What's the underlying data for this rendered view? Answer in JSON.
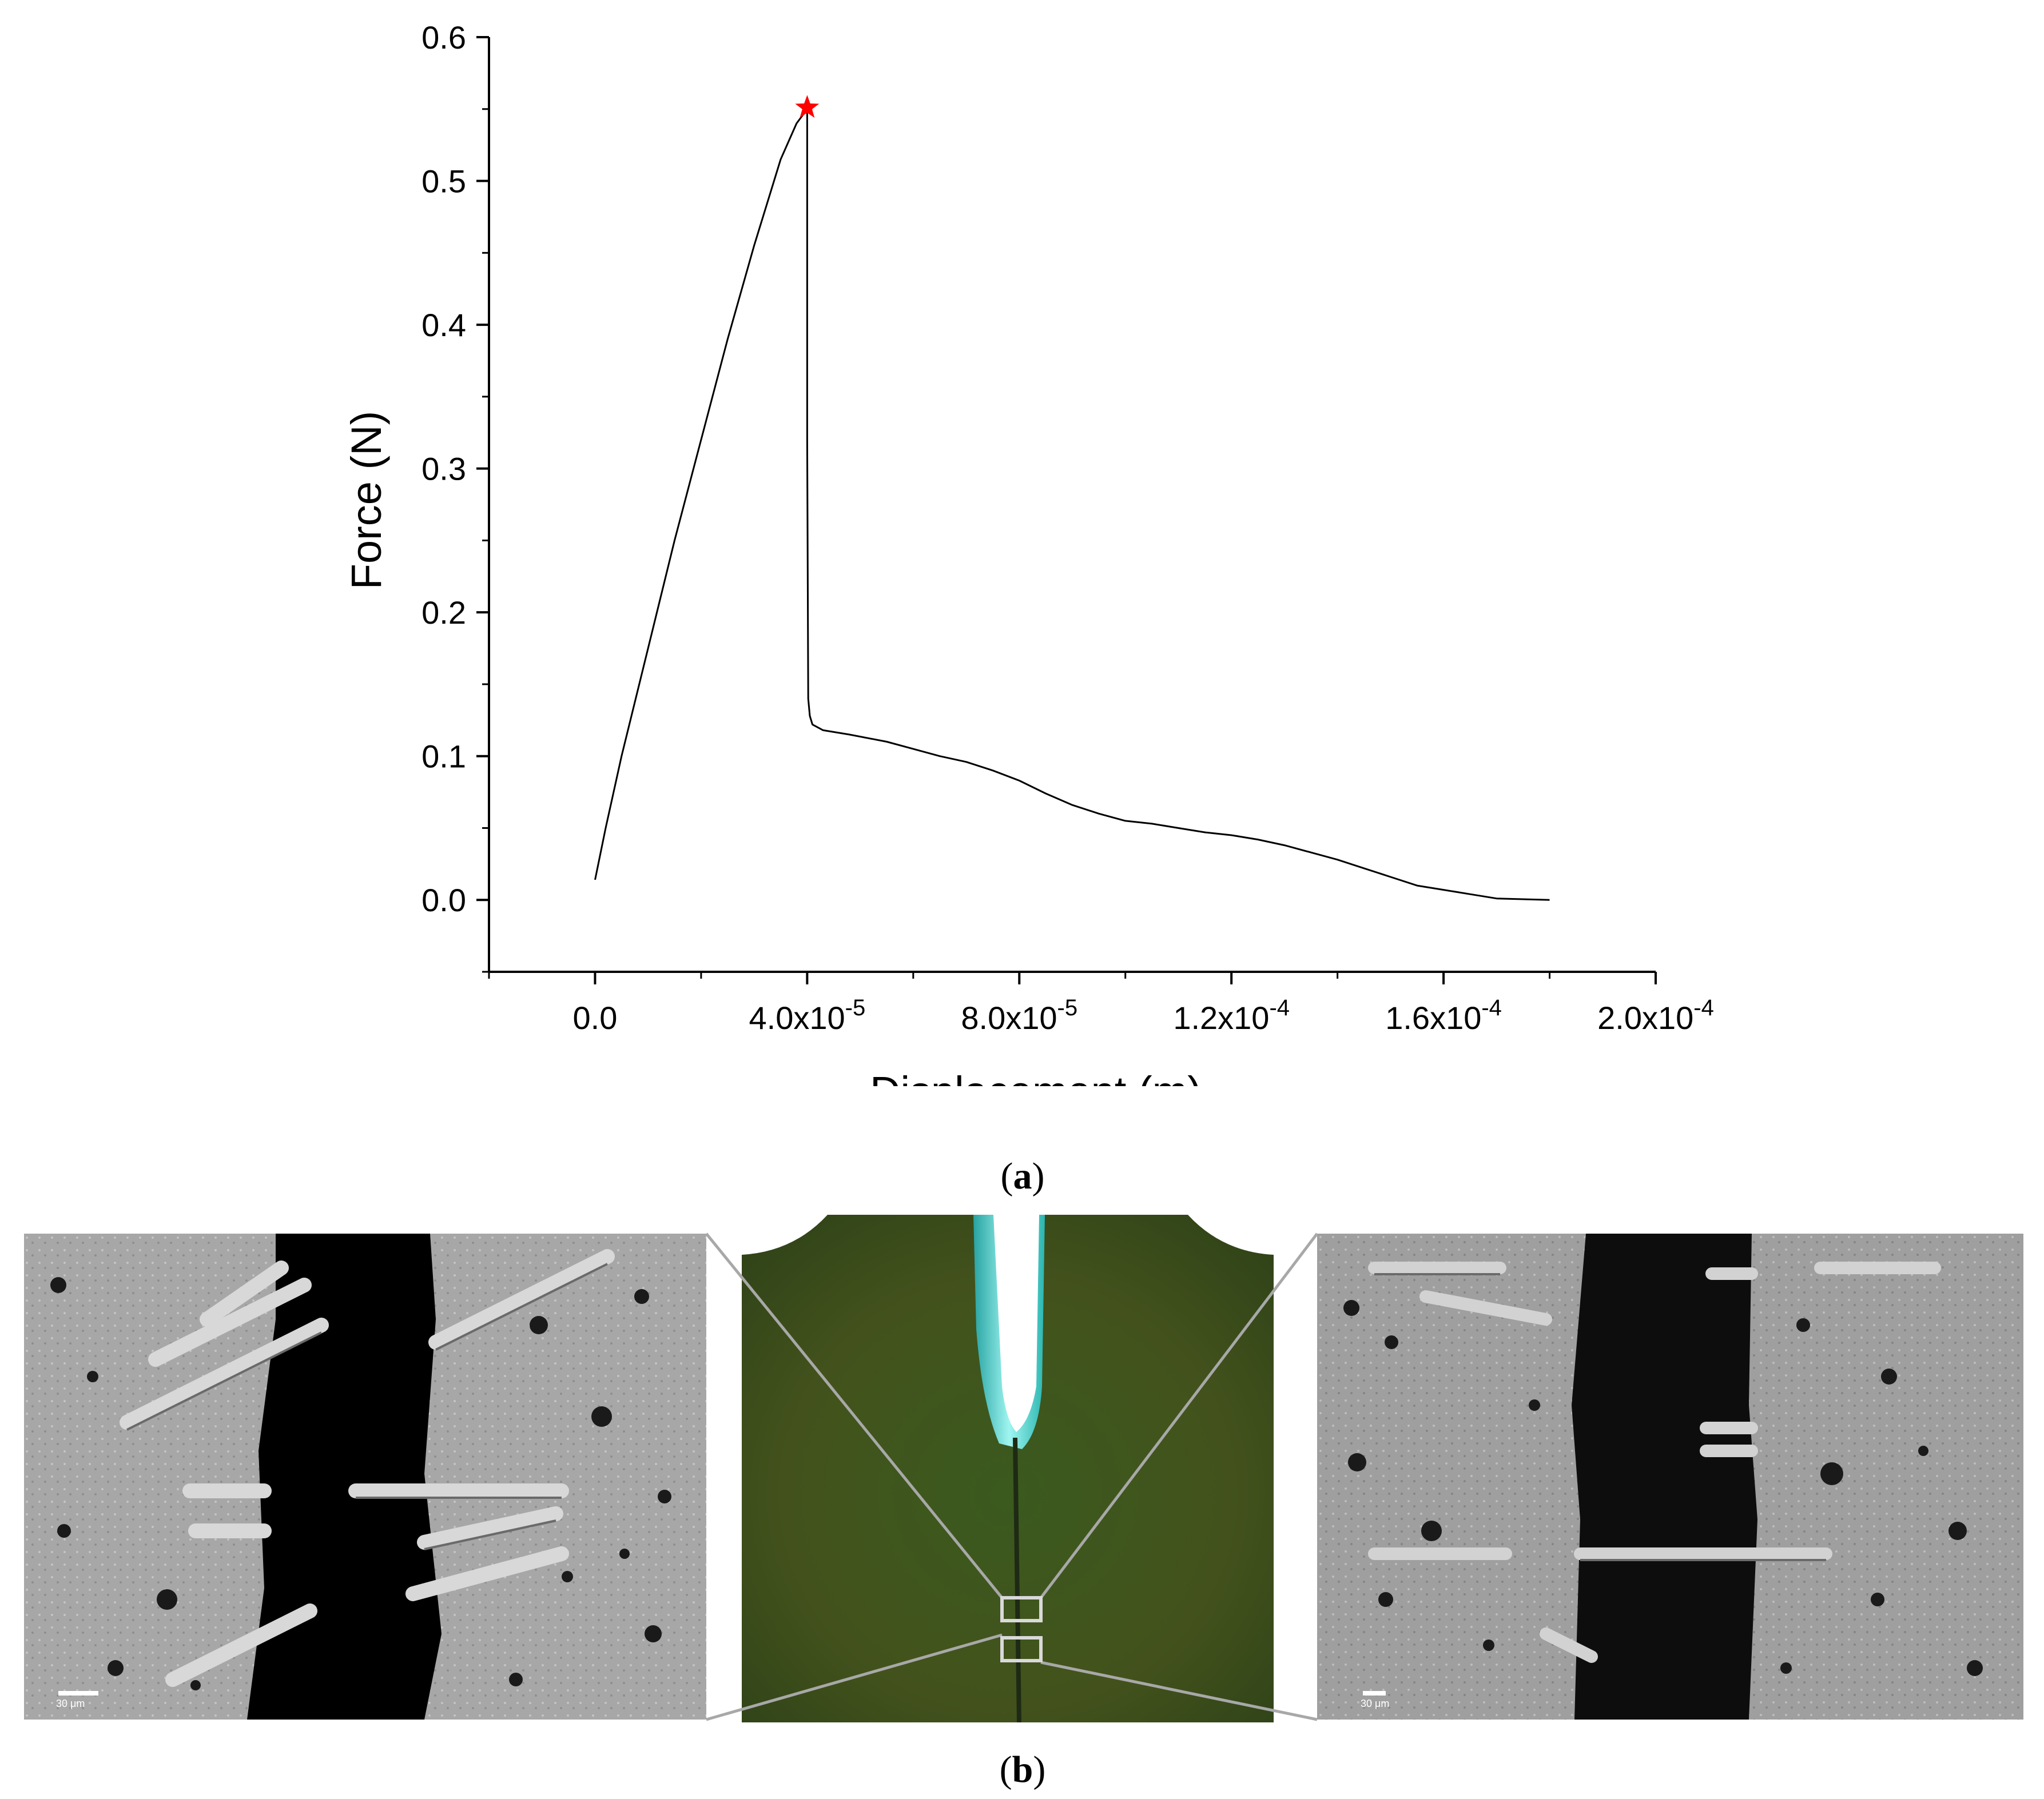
{
  "chart_data": {
    "type": "line",
    "xlabel": "Displacement (m)",
    "ylabel": "Force (N)",
    "xlim": [
      -2e-05,
      0.0002
    ],
    "ylim": [
      -0.05,
      0.6
    ],
    "x_ticks": [
      {
        "value": 0.0,
        "label": "0.0",
        "exp": ""
      },
      {
        "value": 4e-05,
        "label": "4.0x10",
        "exp": "-5"
      },
      {
        "value": 8e-05,
        "label": "8.0x10",
        "exp": "-5"
      },
      {
        "value": 0.00012,
        "label": "1.2x10",
        "exp": "-4"
      },
      {
        "value": 0.00016,
        "label": "1.6x10",
        "exp": "-4"
      },
      {
        "value": 0.0002,
        "label": "2.0x10",
        "exp": "-4"
      }
    ],
    "y_ticks": [
      {
        "value": 0.0,
        "label": "0.0"
      },
      {
        "value": 0.1,
        "label": "0.1"
      },
      {
        "value": 0.2,
        "label": "0.2"
      },
      {
        "value": 0.3,
        "label": "0.3"
      },
      {
        "value": 0.4,
        "label": "0.4"
      },
      {
        "value": 0.5,
        "label": "0.5"
      },
      {
        "value": 0.6,
        "label": "0.6"
      }
    ],
    "grid": false,
    "legend": "none",
    "series": [
      {
        "color": "#000000",
        "x": [
          0.0,
          2e-06,
          5e-06,
          1e-05,
          1.5e-05,
          2e-05,
          2.5e-05,
          3e-05,
          3.5e-05,
          3.8e-05,
          4e-05,
          4e-05,
          4.02e-05,
          4.05e-05,
          4.1e-05,
          4.3e-05,
          4.8e-05,
          5.5e-05,
          6e-05,
          6.5e-05,
          7e-05,
          7.5e-05,
          8e-05,
          8.5e-05,
          9e-05,
          9.5e-05,
          0.0001,
          0.000105,
          0.00011,
          0.000115,
          0.00012,
          0.000125,
          0.00013,
          0.000135,
          0.00014,
          0.000145,
          0.00015,
          0.000155,
          0.00016,
          0.000165,
          0.00017,
          0.000175,
          0.00018
        ],
        "y": [
          0.014,
          0.05,
          0.1,
          0.175,
          0.25,
          0.32,
          0.39,
          0.455,
          0.515,
          0.54,
          0.55,
          0.32,
          0.14,
          0.128,
          0.122,
          0.118,
          0.115,
          0.11,
          0.105,
          0.1,
          0.096,
          0.09,
          0.083,
          0.074,
          0.066,
          0.06,
          0.055,
          0.053,
          0.05,
          0.047,
          0.045,
          0.042,
          0.038,
          0.033,
          0.028,
          0.022,
          0.016,
          0.01,
          0.007,
          0.004,
          0.001,
          0.0005,
          0.0
        ]
      }
    ],
    "annotations": [
      {
        "type": "star",
        "x": 4e-05,
        "y": 0.551,
        "color": "#ff0000"
      }
    ]
  },
  "labels": {
    "panel_a": "a",
    "panel_b": "b"
  },
  "images": {
    "left": {
      "scale_text": "30 μm"
    },
    "right": {
      "scale_text": "30 μm"
    }
  }
}
